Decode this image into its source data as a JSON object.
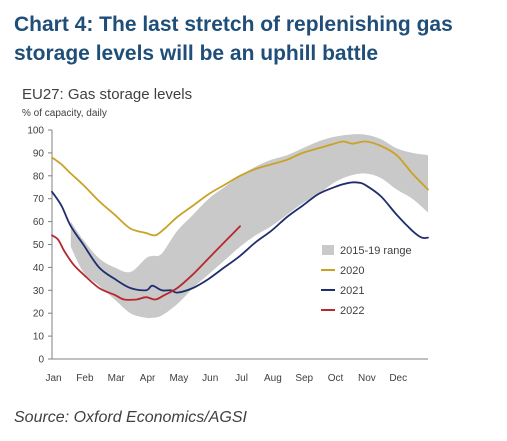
{
  "title": "Chart 4: The last stretch of replenishing gas\nstorage levels will be an uphill battle",
  "source": "Source: Oxford Economics/AGSI",
  "colors": {
    "band": "#c9c9c9",
    "s2020": "#c9a227",
    "s2021": "#1f2f6e",
    "s2022": "#b5292f",
    "axis": "#808080",
    "text": "#404040",
    "title": "#1f4e79"
  },
  "chart_data": {
    "type": "line",
    "title": "EU27: Gas storage levels",
    "ylabel": "% of capacity, daily",
    "xlabel": "",
    "ylim": [
      0,
      100
    ],
    "yticks": [
      0,
      10,
      20,
      30,
      40,
      50,
      60,
      70,
      80,
      90,
      100
    ],
    "xlim": [
      0,
      12
    ],
    "categories": [
      "Jan",
      "Feb",
      "Mar",
      "Apr",
      "May",
      "Jun",
      "Jul",
      "Aug",
      "Sep",
      "Oct",
      "Nov",
      "Dec"
    ],
    "grid": false,
    "legend_position": "right",
    "band": {
      "name": "2015-19 range",
      "x": [
        0.6,
        1.0,
        1.5,
        2.0,
        2.5,
        3.0,
        3.2,
        3.5,
        4.0,
        4.5,
        5.0,
        5.5,
        6.0,
        6.5,
        7.0,
        7.5,
        8.0,
        8.5,
        9.0,
        9.5,
        10.0,
        10.5,
        11.0,
        11.5,
        12.0
      ],
      "upper": [
        60,
        52,
        44,
        40,
        38,
        44,
        45,
        46,
        56,
        63,
        70,
        75,
        80,
        84,
        87,
        89,
        92,
        95,
        97,
        98,
        98,
        96,
        92,
        90,
        89
      ],
      "lower": [
        49,
        38,
        32,
        26,
        20,
        18,
        18,
        19,
        24,
        31,
        37,
        43,
        49,
        54,
        58,
        63,
        68,
        72,
        77,
        80,
        81,
        79,
        74,
        70,
        64
      ]
    },
    "series": [
      {
        "name": "2020",
        "color": "#c9a227",
        "x": [
          0,
          0.3,
          0.6,
          1.0,
          1.5,
          2.0,
          2.5,
          3.0,
          3.3,
          3.6,
          4.0,
          4.5,
          5.0,
          5.5,
          6.0,
          6.5,
          7.0,
          7.5,
          8.0,
          8.5,
          9.0,
          9.3,
          9.6,
          10.0,
          10.5,
          11.0,
          11.5,
          12.0
        ],
        "y": [
          88,
          85,
          81,
          76,
          69,
          63,
          57,
          55,
          54,
          57,
          62,
          67,
          72,
          76,
          80,
          83,
          85,
          87,
          90,
          92,
          94,
          95,
          94,
          95,
          93,
          89,
          81,
          74
        ]
      },
      {
        "name": "2021",
        "color": "#1f2f6e",
        "x": [
          0,
          0.3,
          0.6,
          1.0,
          1.5,
          2.0,
          2.5,
          3.0,
          3.2,
          3.5,
          3.8,
          4.0,
          4.5,
          5.0,
          5.5,
          6.0,
          6.5,
          7.0,
          7.5,
          8.0,
          8.5,
          9.0,
          9.5,
          9.8,
          10.0,
          10.5,
          11.0,
          11.5,
          11.8,
          12.0
        ],
        "y": [
          73,
          67,
          58,
          50,
          40,
          35,
          31,
          30,
          32,
          30,
          30,
          29,
          31,
          35,
          40,
          45,
          51,
          56,
          62,
          67,
          72,
          75,
          77,
          77,
          76,
          71,
          63,
          56,
          53,
          53
        ]
      },
      {
        "name": "2022",
        "color": "#b5292f",
        "x": [
          0,
          0.2,
          0.4,
          0.7,
          1.0,
          1.5,
          2.0,
          2.3,
          2.7,
          3.0,
          3.3,
          3.6,
          4.0,
          4.5,
          5.0,
          5.5,
          6.0
        ],
        "y": [
          54,
          52,
          47,
          41,
          37,
          31,
          28,
          26,
          26,
          27,
          26,
          28,
          31,
          37,
          44,
          51,
          58
        ]
      }
    ]
  }
}
